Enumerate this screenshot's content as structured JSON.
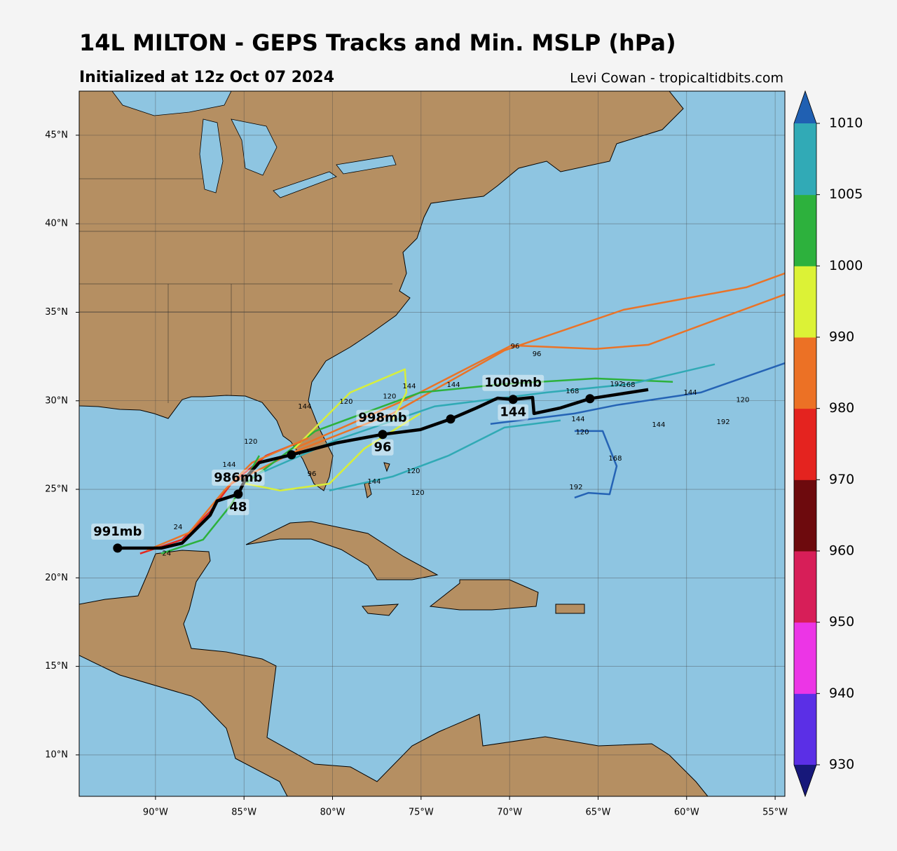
{
  "chart_data": {
    "type": "map",
    "title": "14L MILTON - GEPS Tracks and Min. MSLP (hPa)",
    "subtitle": "Initialized at 12z Oct 07 2024",
    "credit": "Levi Cowan - tropicaltidbits.com",
    "xlim": [
      -94.31,
      -54.45
    ],
    "ylim": [
      7.66,
      47.49
    ],
    "xticks": [
      {
        "value": -90,
        "label": "90°W"
      },
      {
        "value": -85,
        "label": "85°W"
      },
      {
        "value": -80,
        "label": "80°W"
      },
      {
        "value": -75,
        "label": "75°W"
      },
      {
        "value": -70,
        "label": "70°W"
      },
      {
        "value": -65,
        "label": "65°W"
      },
      {
        "value": -60,
        "label": "60°W"
      },
      {
        "value": -55,
        "label": "55°W"
      }
    ],
    "yticks": [
      {
        "value": 10,
        "label": "10°N"
      },
      {
        "value": 15,
        "label": "15°N"
      },
      {
        "value": 20,
        "label": "20°N"
      },
      {
        "value": 25,
        "label": "25°N"
      },
      {
        "value": 30,
        "label": "30°N"
      },
      {
        "value": 35,
        "label": "35°N"
      },
      {
        "value": 40,
        "label": "40°N"
      },
      {
        "value": 45,
        "label": "45°N"
      }
    ],
    "grid": true,
    "colorbar": {
      "levels": [
        930,
        940,
        950,
        960,
        970,
        980,
        990,
        1000,
        1005,
        1010
      ],
      "colors": [
        "#5b2fe6",
        "#ec35e6",
        "#d71e58",
        "#6d0a0d",
        "#e4231f",
        "#ec7125",
        "#dcf236",
        "#2db13d",
        "#31aab6"
      ],
      "under_color": "#17187a",
      "over_color": "#2060b2"
    },
    "tracks": [
      {
        "color": "#ea7327",
        "lon": [
          -85.72,
          -82.16,
          -76.62,
          -70.28,
          -63.56,
          -56.63,
          -54.45
        ],
        "lat": [
          25.32,
          27.11,
          29.28,
          32.85,
          35.14,
          36.41,
          37.2
        ]
      },
      {
        "color": "#ea7327",
        "lon": [
          -82.16,
          -75.83,
          -69.89,
          -65.14,
          -62.17,
          -54.45
        ],
        "lat": [
          27.3,
          30.08,
          33.13,
          32.93,
          33.16,
          36.01
        ]
      },
      {
        "color": "#2cb13c",
        "lon": [
          -84.93,
          -80.97,
          -75.04,
          -70.29,
          -65.14,
          -60.78
        ],
        "lat": [
          25.32,
          28.29,
          30.47,
          30.95,
          31.26,
          31.07
        ]
      },
      {
        "color": "#30aab5",
        "lon": [
          -84.54,
          -79.79,
          -74.24,
          -67.91,
          -63.16,
          -58.41
        ],
        "lat": [
          25.72,
          27.78,
          29.68,
          30.47,
          30.95,
          32.06
        ]
      },
      {
        "color": "#2563b5",
        "lon": [
          -71.08,
          -66.33,
          -63.95,
          -59.2,
          -54.45
        ],
        "lat": [
          28.69,
          29.28,
          29.76,
          30.47,
          32.13
        ]
      },
      {
        "color": "#2563b5",
        "lon": [
          -66.33,
          -64.74,
          -63.95,
          -64.35,
          -65.54,
          -66.33
        ],
        "lat": [
          28.29,
          28.29,
          26.31,
          24.72,
          24.8,
          24.53
        ]
      },
      {
        "color": "#d7ee3c",
        "lon": [
          -84.93,
          -82.95,
          -80.18,
          -78.2,
          -75.04
        ],
        "lat": [
          25.32,
          24.93,
          25.32,
          27.3,
          29.28
        ]
      },
      {
        "color": "#d7ee3c",
        "lon": [
          -82.16,
          -79.0,
          -75.91,
          -75.83,
          -76.62
        ],
        "lat": [
          27.3,
          30.47,
          31.78,
          30.47,
          28.89
        ]
      },
      {
        "color": "#e3261f",
        "lon": [
          -90.87,
          -88.5,
          -86.91,
          -85.72,
          -83.75,
          -81.77
        ],
        "lat": [
          21.37,
          22.16,
          23.75,
          25.32,
          26.9,
          27.7
        ]
      },
      {
        "color": "#ea7327",
        "lon": [
          -90.48,
          -88.1,
          -86.12,
          -84.54,
          -81.37
        ],
        "lat": [
          21.56,
          22.55,
          24.93,
          26.51,
          27.9
        ]
      },
      {
        "color": "#2cb13c",
        "lon": [
          -89.68,
          -87.31,
          -85.72,
          -84.14
        ],
        "lat": [
          21.37,
          22.16,
          24.14,
          26.9
        ]
      },
      {
        "color": "#30aab5",
        "lon": [
          -80.18,
          -76.62,
          -73.45,
          -70.29,
          -67.12
        ],
        "lat": [
          24.93,
          25.72,
          26.9,
          28.49,
          28.89
        ]
      }
    ],
    "mean_track": {
      "color": "#000000",
      "lon": [
        -92.14,
        -89.68,
        -88.5,
        -86.91,
        -86.52,
        -85.33,
        -84.85,
        -84.14,
        -82.32,
        -79.79,
        -77.17,
        -75.04,
        -73.33,
        -71.87,
        -70.68,
        -69.8,
        -68.7,
        -68.62,
        -67.12,
        -65.46,
        -62.17
      ],
      "lat": [
        21.68,
        21.68,
        21.96,
        23.54,
        24.34,
        24.73,
        25.72,
        26.51,
        26.95,
        27.62,
        28.1,
        28.37,
        28.97,
        29.6,
        30.15,
        30.08,
        30.19,
        29.28,
        29.6,
        30.12,
        30.63
      ],
      "marker_lon": [
        -92.14,
        -85.33,
        -82.32,
        -77.17,
        -73.33,
        -69.8,
        -65.46
      ],
      "marker_lat": [
        21.68,
        24.73,
        26.95,
        28.1,
        28.97,
        30.08,
        30.12
      ],
      "pressure_labels": [
        "991mb",
        "986mb",
        null,
        "998mb",
        null,
        "1009mb",
        null
      ],
      "hours": [
        null,
        48,
        null,
        96,
        null,
        144,
        null
      ]
    },
    "hour_labels": {
      "lon": [
        -69.69,
        -68.46,
        -66.45,
        -63.95,
        -63.28,
        -59.79,
        -56.83,
        -57.93,
        -61.58,
        -64.03,
        -66.25,
        -66.13,
        -65.89,
        -75.67,
        -73.17,
        -76.78,
        -79.23,
        -81.57,
        -84.62,
        -85.84,
        -81.17,
        -75.43,
        -77.65,
        -75.19,
        -88.73,
        -89.37
      ],
      "lat": [
        33.08,
        32.65,
        30.55,
        30.95,
        30.91,
        30.47,
        30.04,
        28.81,
        28.65,
        26.75,
        25.13,
        28.97,
        28.22,
        30.83,
        30.91,
        30.24,
        29.96,
        29.68,
        27.7,
        26.39,
        25.88,
        26.04,
        25.44,
        24.81,
        22.87,
        21.37
      ],
      "values": [
        96,
        96,
        168,
        192,
        168,
        144,
        120,
        192,
        144,
        168,
        192,
        144,
        120,
        144,
        144,
        120,
        120,
        144,
        120,
        144,
        96,
        120,
        144,
        120,
        24,
        24
      ]
    }
  }
}
